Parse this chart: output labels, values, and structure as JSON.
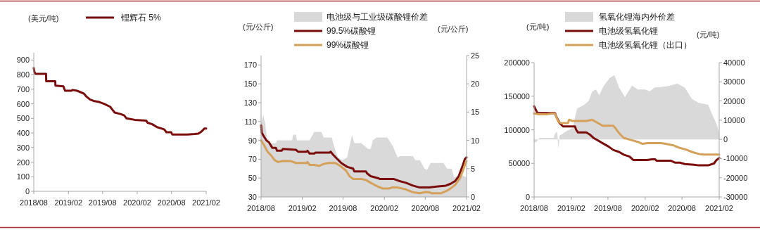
{
  "chart_data": [
    {
      "type": "line",
      "ylabel": "(美元/吨)",
      "legend": "top",
      "xlim": [
        "2018-08-01",
        "2021-02-01"
      ],
      "ylim": [
        0,
        950
      ],
      "xticks": [
        {
          "value": "2018-08-01",
          "label": "2018/08"
        },
        {
          "value": "2019-02-01",
          "label": "2019/02"
        },
        {
          "value": "2019-08-01",
          "label": "2019/08"
        },
        {
          "value": "2020-02-01",
          "label": "2020/02"
        },
        {
          "value": "2020-08-01",
          "label": "2020/08"
        },
        {
          "value": "2021-02-01",
          "label": "2021/02"
        }
      ],
      "yticks": [
        0,
        100,
        200,
        300,
        400,
        500,
        600,
        700,
        800,
        900
      ],
      "series": [
        {
          "name": "锂辉石 5%",
          "color": "#7b0c0c",
          "x": [
            "2018-08-01",
            "2018-08-04",
            "2018-08-10",
            "2018-10-05",
            "2018-10-06",
            "2018-11-23",
            "2018-11-24",
            "2019-01-05",
            "2019-01-14",
            "2019-02-17",
            "2019-02-23",
            "2019-03-18",
            "2019-04-06",
            "2019-04-24",
            "2019-05-07",
            "2019-05-26",
            "2019-06-14",
            "2019-07-15",
            "2019-08-09",
            "2019-09-10",
            "2019-09-22",
            "2019-10-04",
            "2019-11-05",
            "2019-11-24",
            "2019-12-06",
            "2020-01-19",
            "2020-03-20",
            "2020-03-27",
            "2020-04-21",
            "2020-05-16",
            "2020-06-23",
            "2020-07-05",
            "2020-07-30",
            "2020-08-05",
            "2020-10-25",
            "2020-12-02",
            "2020-12-20",
            "2021-01-02",
            "2021-01-15",
            "2021-01-22",
            "2021-02-01"
          ],
          "values": [
            845,
            820,
            805,
            805,
            755,
            755,
            725,
            720,
            690,
            690,
            695,
            690,
            680,
            670,
            650,
            630,
            620,
            612,
            600,
            580,
            560,
            540,
            530,
            520,
            500,
            490,
            485,
            470,
            460,
            440,
            425,
            405,
            405,
            390,
            390,
            393,
            395,
            405,
            420,
            430,
            430
          ]
        }
      ]
    },
    {
      "type": "line",
      "ylabel": "(元/公斤)",
      "y2label": "(元/公斤)",
      "legend": "top",
      "xlim": [
        "2018-08-01",
        "2021-02-01"
      ],
      "ylim": [
        30,
        180
      ],
      "y2lim": [
        0,
        25
      ],
      "xticks": [
        {
          "value": "2018-08-01",
          "label": "2018/08"
        },
        {
          "value": "2019-02-01",
          "label": "2019/02"
        },
        {
          "value": "2019-08-01",
          "label": "2019/08"
        },
        {
          "value": "2020-02-01",
          "label": "2020/02"
        },
        {
          "value": "2020-08-01",
          "label": "2020/08"
        },
        {
          "value": "2021-02-01",
          "label": "2021/02"
        }
      ],
      "yticks": [
        30,
        50,
        70,
        90,
        110,
        130,
        150,
        170
      ],
      "y2ticks": [
        0,
        5,
        10,
        15,
        20,
        25
      ],
      "series": [
        {
          "name": "电池级与工业级碳酸锂价差",
          "type": "area",
          "axis": "y2",
          "color": "#d9d9d9",
          "x": [
            "2018-08-01",
            "2018-08-11",
            "2018-08-19",
            "2018-08-30",
            "2018-10-06",
            "2018-10-11",
            "2018-12-17",
            "2018-12-22",
            "2019-01-03",
            "2019-01-08",
            "2019-03-05",
            "2019-03-26",
            "2019-04-26",
            "2019-05-07",
            "2019-06-12",
            "2019-06-22",
            "2019-07-08",
            "2019-07-29",
            "2019-08-19",
            "2019-09-10",
            "2019-09-20",
            "2019-10-21",
            "2019-11-21",
            "2019-12-02",
            "2019-12-12",
            "2019-12-28",
            "2020-02-14",
            "2020-03-10",
            "2020-03-31",
            "2020-04-11",
            "2020-06-07",
            "2020-06-18",
            "2020-07-08",
            "2020-07-29",
            "2020-08-09",
            "2020-08-25",
            "2020-10-21",
            "2020-11-06",
            "2020-11-27",
            "2020-12-07",
            "2020-12-13",
            "2021-01-03",
            "2021-01-29",
            "2021-02-01"
          ],
          "values": [
            13,
            14.5,
            13,
            9.5,
            9.5,
            10,
            10,
            11,
            11,
            10,
            10,
            11.5,
            11.5,
            10.5,
            10.5,
            9,
            7,
            6.5,
            7,
            11,
            9.5,
            9.5,
            8.5,
            8.5,
            10,
            10.5,
            10.5,
            9,
            7,
            7.2,
            7.2,
            6.5,
            6.5,
            5,
            4.8,
            6,
            6,
            5,
            5,
            3.5,
            3.5,
            4,
            3.5,
            3.5
          ]
        },
        {
          "name": "99.5%碳酸锂",
          "color": "#7b0c0c",
          "x": [
            "2018-08-01",
            "2018-08-04",
            "2018-08-14",
            "2018-08-25",
            "2018-09-05",
            "2018-09-15",
            "2018-09-20",
            "2018-10-06",
            "2018-10-11",
            "2018-11-01",
            "2018-11-06",
            "2019-01-03",
            "2019-01-13",
            "2019-02-19",
            "2019-02-24",
            "2019-03-05",
            "2019-03-26",
            "2019-03-31",
            "2019-06-02",
            "2019-06-07",
            "2019-06-17",
            "2019-07-03",
            "2019-07-24",
            "2019-08-19",
            "2019-09-15",
            "2019-09-20",
            "2019-11-11",
            "2019-11-16",
            "2019-12-02",
            "2020-01-03",
            "2020-01-13",
            "2020-03-15",
            "2020-04-06",
            "2020-05-07",
            "2020-06-07",
            "2020-07-08",
            "2020-08-19",
            "2020-09-20",
            "2020-11-01",
            "2020-11-22",
            "2020-12-13",
            "2020-12-28",
            "2021-01-13",
            "2021-01-24",
            "2021-02-01"
          ],
          "values": [
            106,
            98,
            94,
            90,
            88,
            84,
            82,
            82,
            79,
            79,
            81,
            80,
            78,
            78,
            79,
            76,
            76,
            77,
            77,
            78,
            75,
            71,
            66,
            62,
            60,
            57,
            57,
            55,
            52,
            50,
            49,
            49,
            47,
            45,
            42,
            40,
            40,
            41,
            42,
            44,
            47,
            52,
            62,
            70,
            72
          ]
        },
        {
          "name": "99%碳酸锂",
          "color": "#d4a05a",
          "x": [
            "2018-08-01",
            "2018-08-14",
            "2018-08-30",
            "2018-09-15",
            "2018-10-01",
            "2018-10-16",
            "2018-11-01",
            "2018-12-12",
            "2019-01-03",
            "2019-02-19",
            "2019-02-24",
            "2019-03-05",
            "2019-03-26",
            "2019-04-16",
            "2019-05-07",
            "2019-05-27",
            "2019-06-28",
            "2019-07-19",
            "2019-08-14",
            "2019-08-30",
            "2019-09-15",
            "2019-10-21",
            "2019-11-11",
            "2019-12-02",
            "2020-01-03",
            "2020-01-24",
            "2020-02-24",
            "2020-03-05",
            "2020-03-31",
            "2020-05-07",
            "2020-06-07",
            "2020-07-08",
            "2020-07-29",
            "2020-08-19",
            "2020-08-30",
            "2020-10-11",
            "2020-11-01",
            "2020-11-22",
            "2020-12-13",
            "2021-01-03",
            "2021-01-19",
            "2021-01-29",
            "2021-02-01"
          ],
          "values": [
            90,
            85,
            78,
            74,
            69,
            67,
            68,
            68,
            66,
            66,
            67,
            64,
            64,
            63,
            65,
            66,
            66,
            63,
            58,
            52,
            49,
            49,
            48,
            45,
            41,
            39,
            39,
            40,
            40,
            38,
            35,
            34,
            35,
            35,
            34,
            34,
            36,
            39,
            43,
            50,
            60,
            67,
            68
          ]
        }
      ]
    },
    {
      "type": "line",
      "ylabel": "(元/吨)",
      "y2label": "(元/吨)",
      "legend": "top",
      "xlim": [
        "2018-08-01",
        "2021-02-01"
      ],
      "ylim": [
        0,
        200000
      ],
      "y2lim": [
        -30000,
        40000
      ],
      "xticks": [
        {
          "value": "2018-08-01",
          "label": "2018/08"
        },
        {
          "value": "2019-02-01",
          "label": "2019/02"
        },
        {
          "value": "2019-08-01",
          "label": "2019/08"
        },
        {
          "value": "2020-02-01",
          "label": "2020/02"
        },
        {
          "value": "2020-08-01",
          "label": "2020/08"
        },
        {
          "value": "2021-02-01",
          "label": "2021/02"
        }
      ],
      "yticks": [
        0,
        50000,
        100000,
        150000,
        200000
      ],
      "y2ticks": [
        -30000,
        -20000,
        -10000,
        0,
        10000,
        20000,
        30000,
        40000
      ],
      "series": [
        {
          "name": "氢氧化锂海内外价差",
          "type": "area",
          "axis": "y2",
          "color": "#d9d9d9",
          "x": [
            "2018-08-01",
            "2018-08-11",
            "2018-08-28",
            "2018-11-06",
            "2018-11-12",
            "2018-11-23",
            "2018-11-29",
            "2018-12-05",
            "2019-01-04",
            "2019-02-08",
            "2019-03-01",
            "2019-04-05",
            "2019-04-28",
            "2019-05-15",
            "2019-06-02",
            "2019-06-19",
            "2019-07-12",
            "2019-08-10",
            "2019-09-02",
            "2019-09-25",
            "2019-10-24",
            "2019-11-28",
            "2019-12-27",
            "2020-02-01",
            "2020-02-24",
            "2020-03-17",
            "2020-05-13",
            "2020-07-10",
            "2020-08-15",
            "2020-09-19",
            "2020-10-23",
            "2020-12-09",
            "2020-12-20",
            "2021-01-19",
            "2021-02-01"
          ],
          "values": [
            -1500,
            -1500,
            800,
            800,
            3000,
            4000,
            -5000,
            2000,
            4000,
            6000,
            16000,
            18000,
            20000,
            25000,
            26000,
            23000,
            28000,
            32000,
            33500,
            27000,
            22000,
            28000,
            26000,
            26000,
            25000,
            27000,
            27500,
            29000,
            27000,
            21000,
            19000,
            18000,
            15000,
            8000,
            3000
          ]
        },
        {
          "name": "电池级氢氧化锂",
          "color": "#7b0c0c",
          "x": [
            "2018-08-01",
            "2018-08-17",
            "2018-11-12",
            "2018-11-18",
            "2018-12-05",
            "2018-12-22",
            "2019-02-19",
            "2019-02-25",
            "2019-03-06",
            "2019-04-16",
            "2019-05-03",
            "2019-05-21",
            "2019-06-07",
            "2019-07-06",
            "2019-08-04",
            "2019-08-27",
            "2019-09-25",
            "2019-10-18",
            "2019-11-16",
            "2019-12-04",
            "2020-02-12",
            "2020-03-05",
            "2020-03-22",
            "2020-03-28",
            "2020-06-06",
            "2020-06-29",
            "2020-07-22",
            "2020-08-15",
            "2020-09-30",
            "2020-10-23",
            "2020-12-09",
            "2021-01-07",
            "2021-01-19",
            "2021-02-01"
          ],
          "values": [
            135000,
            125000,
            125000,
            120000,
            110000,
            105000,
            105000,
            100000,
            96000,
            96000,
            93000,
            88000,
            85000,
            80000,
            75000,
            70000,
            67000,
            63000,
            60000,
            55000,
            55000,
            56000,
            56000,
            54000,
            54000,
            51000,
            51000,
            49000,
            48000,
            47000,
            47000,
            50000,
            55000,
            58000
          ]
        },
        {
          "name": "电池级氢氧化锂（出口）",
          "color": "#d4a05a",
          "x": [
            "2018-08-01",
            "2018-08-28",
            "2018-10-02",
            "2018-10-25",
            "2018-11-12",
            "2018-11-29",
            "2018-12-11",
            "2019-01-15",
            "2019-01-21",
            "2019-02-08",
            "2019-04-16",
            "2019-05-15",
            "2019-06-13",
            "2019-07-06",
            "2019-08-27",
            "2019-09-08",
            "2019-09-25",
            "2019-10-18",
            "2019-11-22",
            "2019-12-27",
            "2020-01-19",
            "2020-02-12",
            "2020-04-20",
            "2020-05-13",
            "2020-06-17",
            "2020-07-22",
            "2020-08-26",
            "2020-09-19",
            "2020-10-23",
            "2020-11-16",
            "2021-02-01"
          ],
          "values": [
            124000,
            123000,
            123000,
            124000,
            124000,
            112000,
            110000,
            110000,
            115000,
            113000,
            113000,
            115000,
            110000,
            106000,
            106000,
            102000,
            95000,
            88000,
            85000,
            82000,
            79000,
            80000,
            80000,
            79000,
            77000,
            73000,
            70000,
            67000,
            64000,
            63000,
            63000
          ]
        }
      ]
    }
  ]
}
